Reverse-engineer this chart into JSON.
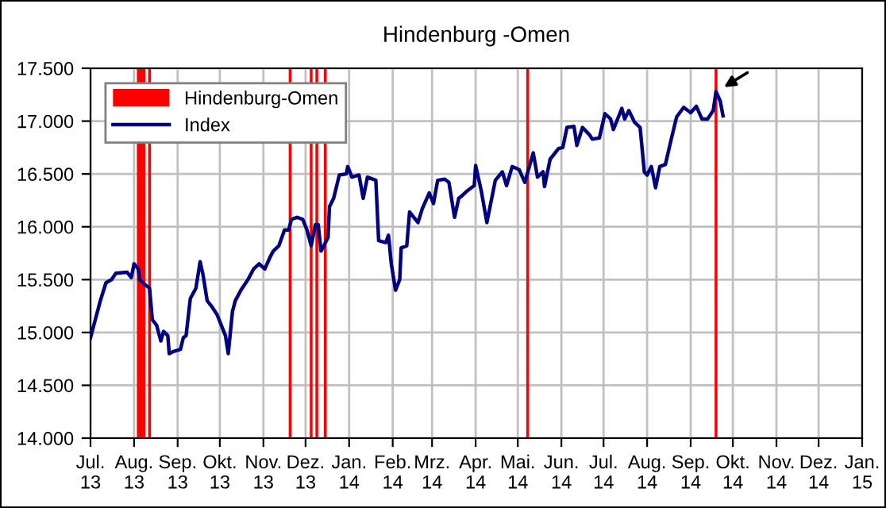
{
  "chart_data": {
    "type": "line",
    "title": "Hindenburg -Omen",
    "x": [
      "2013-07-01",
      "2013-07-04",
      "2013-07-08",
      "2013-07-12",
      "2013-07-16",
      "2013-07-19",
      "2013-07-27",
      "2013-07-30",
      "2013-08-01",
      "2013-08-04",
      "2013-08-05",
      "2013-08-09",
      "2013-08-12",
      "2013-08-14",
      "2013-08-17",
      "2013-08-20",
      "2013-08-22",
      "2013-08-25",
      "2013-08-26",
      "2013-08-29",
      "2013-09-03",
      "2013-09-05",
      "2013-09-07",
      "2013-09-10",
      "2013-09-14",
      "2013-09-17",
      "2013-09-19",
      "2013-09-22",
      "2013-09-25",
      "2013-09-29",
      "2013-10-02",
      "2013-10-05",
      "2013-10-07",
      "2013-10-10",
      "2013-10-12",
      "2013-10-16",
      "2013-10-21",
      "2013-10-25",
      "2013-10-29",
      "2013-11-02",
      "2013-11-06",
      "2013-11-08",
      "2013-11-12",
      "2013-11-16",
      "2013-11-19",
      "2013-11-21",
      "2013-11-25",
      "2013-11-29",
      "2013-12-02",
      "2013-12-05",
      "2013-12-08",
      "2013-12-10",
      "2013-12-12",
      "2013-12-14",
      "2013-12-17",
      "2013-12-18",
      "2013-12-21",
      "2013-12-25",
      "2013-12-30",
      "2013-12-31",
      "2014-01-03",
      "2014-01-08",
      "2014-01-11",
      "2014-01-14",
      "2014-01-20",
      "2014-01-22",
      "2014-01-27",
      "2014-01-29",
      "2014-01-31",
      "2014-02-03",
      "2014-02-06",
      "2014-02-07",
      "2014-02-11",
      "2014-02-13",
      "2014-02-19",
      "2014-02-22",
      "2014-02-27",
      "2014-03-02",
      "2014-03-05",
      "2014-03-10",
      "2014-03-13",
      "2014-03-17",
      "2014-03-20",
      "2014-03-22",
      "2014-03-26",
      "2014-03-31",
      "2014-04-01",
      "2014-04-05",
      "2014-04-09",
      "2014-04-12",
      "2014-04-15",
      "2014-04-20",
      "2014-04-23",
      "2014-04-27",
      "2014-05-02",
      "2014-05-06",
      "2014-05-12",
      "2014-05-15",
      "2014-05-19",
      "2014-05-20",
      "2014-05-24",
      "2014-05-30",
      "2014-06-02",
      "2014-06-05",
      "2014-06-10",
      "2014-06-12",
      "2014-06-16",
      "2014-06-21",
      "2014-06-23",
      "2014-06-28",
      "2014-07-02",
      "2014-07-06",
      "2014-07-08",
      "2014-07-14",
      "2014-07-16",
      "2014-07-19",
      "2014-07-23",
      "2014-07-27",
      "2014-07-30",
      "2014-08-01",
      "2014-08-04",
      "2014-08-07",
      "2014-08-10",
      "2014-08-14",
      "2014-08-18",
      "2014-08-22",
      "2014-08-27",
      "2014-09-01",
      "2014-09-05",
      "2014-09-09",
      "2014-09-13",
      "2014-09-17",
      "2014-09-19",
      "2014-09-22",
      "2014-09-24"
    ],
    "series": [
      {
        "name": "Index",
        "color": "#000080",
        "values": [
          14950,
          15100,
          15300,
          15470,
          15500,
          15560,
          15570,
          15520,
          15650,
          15600,
          15500,
          15450,
          15420,
          15120,
          15070,
          14920,
          15010,
          14970,
          14800,
          14820,
          14840,
          14950,
          14970,
          15320,
          15420,
          15670,
          15550,
          15300,
          15250,
          15170,
          15070,
          14970,
          14800,
          15200,
          15300,
          15400,
          15500,
          15600,
          15650,
          15600,
          15720,
          15770,
          15820,
          15970,
          15970,
          16070,
          16090,
          16070,
          15970,
          15820,
          16020,
          16020,
          15770,
          15820,
          15900,
          16190,
          16270,
          16490,
          16500,
          16570,
          16470,
          16490,
          16270,
          16470,
          16440,
          15870,
          15850,
          15920,
          15650,
          15400,
          15500,
          15800,
          15820,
          16140,
          16040,
          16170,
          16320,
          16220,
          16440,
          16450,
          16420,
          16090,
          16270,
          16290,
          16340,
          16390,
          16580,
          16340,
          16040,
          16240,
          16440,
          16520,
          16390,
          16570,
          16540,
          16420,
          16700,
          16470,
          16520,
          16380,
          16640,
          16740,
          16750,
          16940,
          16950,
          16770,
          16940,
          16870,
          16830,
          16840,
          17070,
          17020,
          16920,
          17120,
          17020,
          17100,
          16990,
          16940,
          16520,
          16490,
          16570,
          16370,
          16570,
          16590,
          16820,
          17040,
          17130,
          17080,
          17140,
          17020,
          17020,
          17100,
          17280,
          17190,
          17050
        ]
      }
    ],
    "bands": [
      {
        "axis": "x",
        "from": "2013-08-03",
        "to": "2013-08-09",
        "label": "Hindenburg-Omen",
        "color": "#ff0000"
      },
      {
        "axis": "x",
        "from": "2013-08-11",
        "to": "2013-08-13",
        "color": "#ff0000"
      },
      {
        "axis": "x",
        "from": "2013-11-19",
        "to": "2013-11-21",
        "color": "#ff0000"
      },
      {
        "axis": "x",
        "from": "2013-12-04",
        "to": "2013-12-06",
        "color": "#ff0000"
      },
      {
        "axis": "x",
        "from": "2013-12-08",
        "to": "2013-12-10",
        "color": "#ff0000"
      },
      {
        "axis": "x",
        "from": "2013-12-14",
        "to": "2013-12-16",
        "color": "#ff0000"
      },
      {
        "axis": "x",
        "from": "2014-05-07",
        "to": "2014-05-09",
        "color": "#ff0000"
      },
      {
        "axis": "x",
        "from": "2014-09-18",
        "to": "2014-09-20",
        "color": "#ff0000"
      }
    ],
    "xlim": [
      "2013-07-01",
      "2015-01-01"
    ],
    "xticks": [
      {
        "value": "2013-07-01",
        "label": "Jul.\n13"
      },
      {
        "value": "2013-08-01",
        "label": "Aug.\n13"
      },
      {
        "value": "2013-09-01",
        "label": "Sep.\n13"
      },
      {
        "value": "2013-10-01",
        "label": "Okt.\n13"
      },
      {
        "value": "2013-11-01",
        "label": "Nov.\n13"
      },
      {
        "value": "2013-12-01",
        "label": "Dez.\n13"
      },
      {
        "value": "2014-01-01",
        "label": "Jan.\n14"
      },
      {
        "value": "2014-02-01",
        "label": "Feb.\n14"
      },
      {
        "value": "2014-03-01",
        "label": "Mrz.\n14"
      },
      {
        "value": "2014-04-01",
        "label": "Apr.\n14"
      },
      {
        "value": "2014-05-01",
        "label": "Mai.\n14"
      },
      {
        "value": "2014-06-01",
        "label": "Jun.\n14"
      },
      {
        "value": "2014-07-01",
        "label": "Jul.\n14"
      },
      {
        "value": "2014-08-01",
        "label": "Aug.\n14"
      },
      {
        "value": "2014-09-01",
        "label": "Sep.\n14"
      },
      {
        "value": "2014-10-01",
        "label": "Okt.\n14"
      },
      {
        "value": "2014-11-01",
        "label": "Nov.\n14"
      },
      {
        "value": "2014-12-01",
        "label": "Dez.\n14"
      },
      {
        "value": "2015-01-01",
        "label": "Jan.\n15"
      }
    ],
    "ylim": [
      14000,
      17500
    ],
    "yticks": [
      {
        "value": 14000,
        "label": "14.000"
      },
      {
        "value": 14500,
        "label": "14.500"
      },
      {
        "value": 15000,
        "label": "15.000"
      },
      {
        "value": 15500,
        "label": "15.500"
      },
      {
        "value": 16000,
        "label": "16.000"
      },
      {
        "value": 16500,
        "label": "16.500"
      },
      {
        "value": 17000,
        "label": "17.000"
      },
      {
        "value": 17500,
        "label": "17.500"
      }
    ],
    "grid": true,
    "legend": "top left",
    "marker": "none",
    "line_style": "solid"
  }
}
